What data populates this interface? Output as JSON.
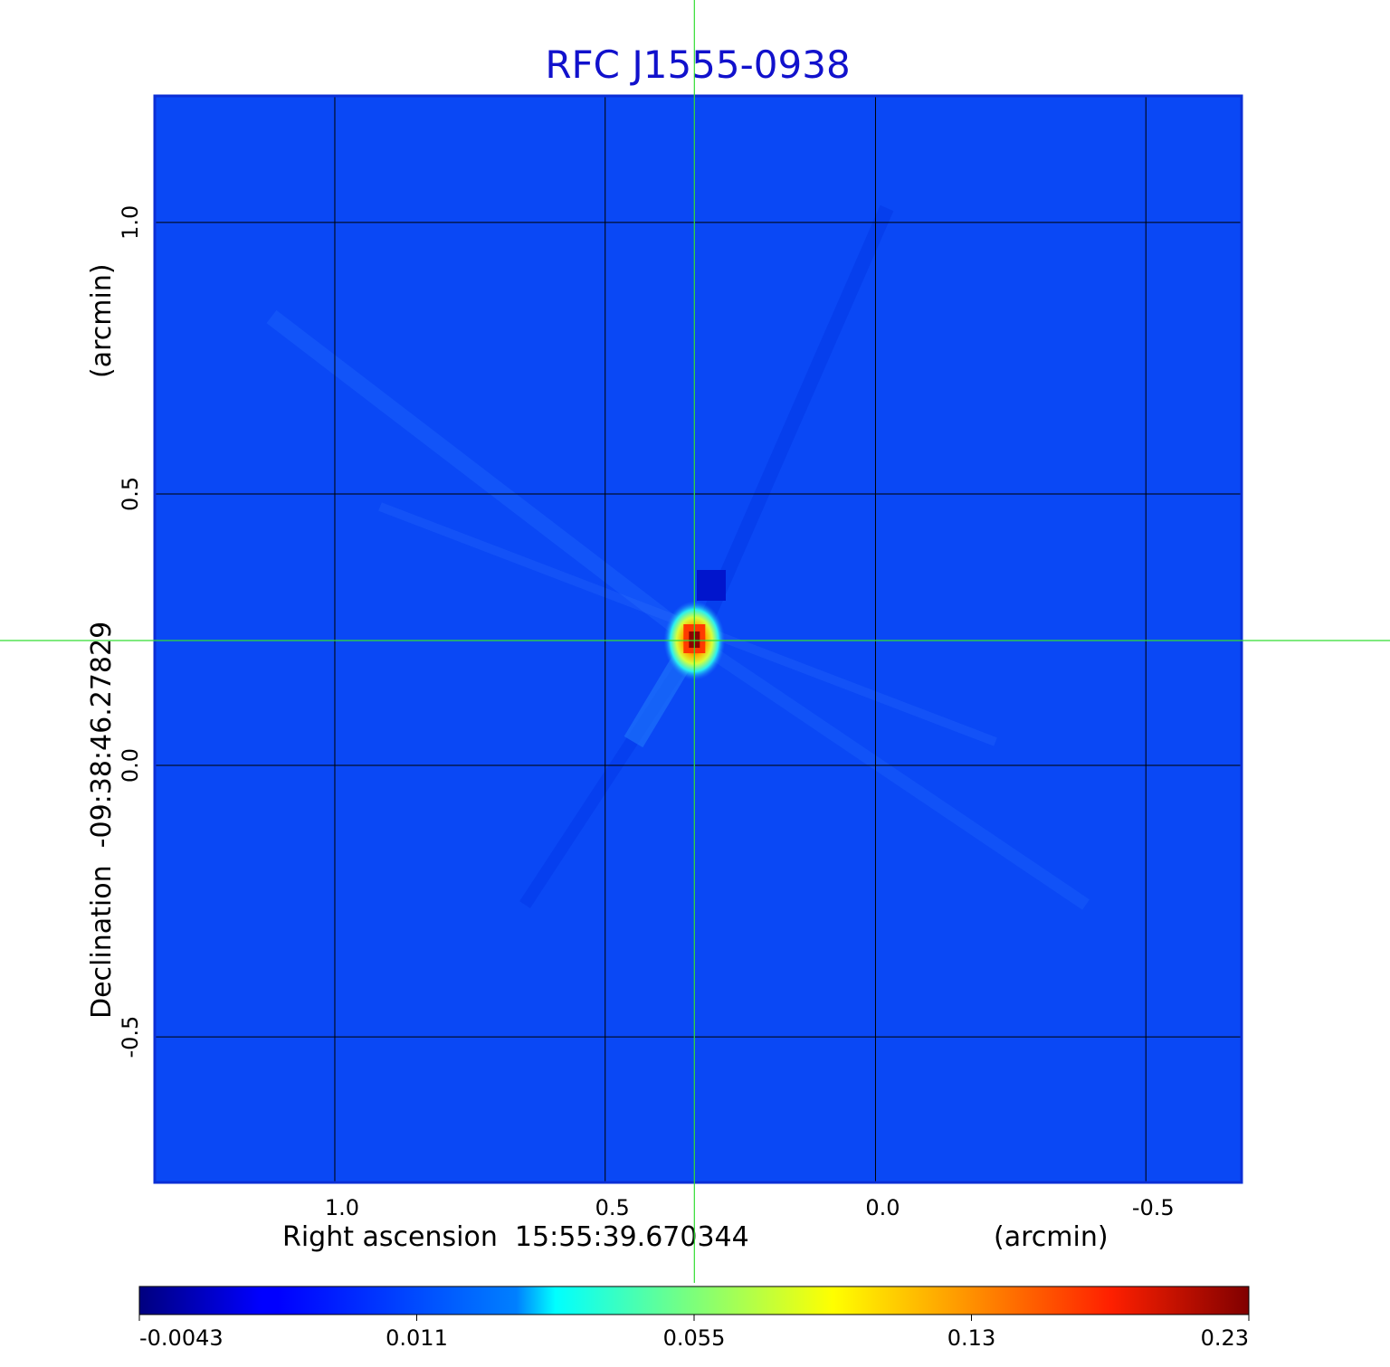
{
  "chart_data": {
    "type": "heatmap",
    "title": "RFC J1555-0938",
    "xlabel": "Right ascension  15:55:39.670344",
    "xunit": "(arcmin)",
    "ylabel": "Declination  -09:38:46.27829",
    "yunit": "(arcmin)",
    "xlim": [
      1.333,
      -0.677
    ],
    "ylim": [
      -0.768,
      1.233
    ],
    "x_ticks": [
      {
        "value": 1.0,
        "label": "1.0"
      },
      {
        "value": 0.5,
        "label": "0.5"
      },
      {
        "value": 0.0,
        "label": "0.0"
      },
      {
        "value": -0.5,
        "label": "-0.5"
      }
    ],
    "y_ticks": [
      {
        "value": 1.0,
        "label": "1.0"
      },
      {
        "value": 0.5,
        "label": "0.5"
      },
      {
        "value": 0.0,
        "label": "0.0"
      },
      {
        "value": -0.5,
        "label": "-0.5"
      }
    ],
    "grid": true,
    "crosshair": {
      "x": 0.335,
      "y": 0.23,
      "color": "#33dd33"
    },
    "source_peak": {
      "x": 0.335,
      "y": 0.23,
      "value": 0.23
    },
    "colormap": "jet",
    "colorbar": {
      "position": "bottom",
      "ticks": [
        {
          "label": "-0.0043",
          "frac": 0.0
        },
        {
          "label": "0.011",
          "frac": 0.25
        },
        {
          "label": "0.055",
          "frac": 0.5
        },
        {
          "label": "0.13",
          "frac": 0.75
        },
        {
          "label": "0.23",
          "frac": 1.0
        }
      ]
    },
    "colors": {
      "title": "#1111cc",
      "background_field": "#0a48f5",
      "frame": "#0b2fd6",
      "grid": "#000000"
    }
  }
}
